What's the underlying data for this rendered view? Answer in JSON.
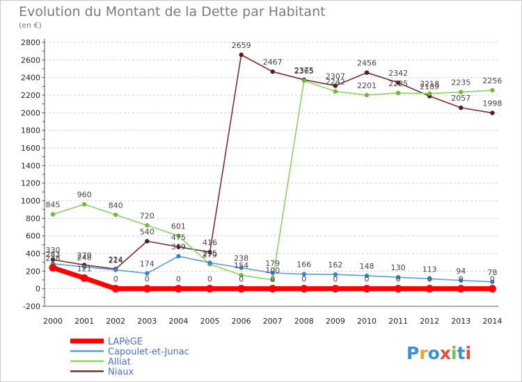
{
  "chart_data": {
    "type": "line",
    "title": "Evolution du Montant de la Dette par Habitant",
    "subtitle": "(en €)",
    "xlabel": "",
    "ylabel": "",
    "x": [
      "2000",
      "2001",
      "2002",
      "2003",
      "2004",
      "2005",
      "2006",
      "2007",
      "2008",
      "2009",
      "2010",
      "2011",
      "2012",
      "2013",
      "2014"
    ],
    "ylim": [
      -200,
      2800
    ],
    "yticks": [
      -200,
      0,
      200,
      400,
      600,
      800,
      1000,
      1200,
      1400,
      1600,
      1800,
      2000,
      2200,
      2400,
      2600,
      2800
    ],
    "grid": "horizontal-dashed",
    "legend_position": "bottom-left",
    "series": [
      {
        "name": "LAPèGE",
        "color": "#ff0000",
        "values": [
          238,
          121,
          0,
          0,
          0,
          0,
          0,
          0,
          0,
          0,
          0,
          0,
          0,
          0,
          0
        ],
        "labels": [
          "238",
          "121",
          "0",
          "0",
          "0",
          "0",
          "0",
          "0",
          "0",
          "0",
          "0",
          "0",
          "0",
          "0",
          "0"
        ],
        "marker": "dot"
      },
      {
        "name": "Capoulet-et-Junac",
        "color": "#5b9bd5",
        "values": [
          283,
          248,
          214,
          174,
          369,
          295,
          238,
          179,
          166,
          162,
          148,
          130,
          113,
          94,
          78
        ],
        "labels": [
          "283",
          "248",
          "214",
          "174",
          "369",
          "295",
          "238",
          "179",
          "166",
          "162",
          "148",
          "130",
          "113",
          "94",
          "78"
        ],
        "marker": "dot"
      },
      {
        "name": "Alliat",
        "color": "#8bd35d",
        "values": [
          845,
          960,
          840,
          720,
          601,
          279,
          154,
          100,
          2365,
          2242,
          2201,
          2225,
          2218,
          2235,
          2256
        ],
        "labels": [
          "845",
          "960",
          "840",
          "720",
          "601",
          "279",
          "154",
          "100",
          "2365",
          "2242",
          "2201",
          "2225",
          "2218",
          "2235",
          "2256"
        ],
        "marker": "dot"
      },
      {
        "name": "Niaux",
        "color": "#7a2e2e",
        "values": [
          330,
          270,
          224,
          540,
          475,
          416,
          2659,
          2467,
          2375,
          2307,
          2456,
          2342,
          2189,
          2057,
          1998
        ],
        "labels": [
          "330",
          "270",
          "224",
          "540",
          "475",
          "416",
          "2659",
          "2467",
          "2375",
          "2307",
          "2456",
          "2342",
          "2189",
          "2057",
          "1998"
        ],
        "marker": "dot"
      }
    ]
  },
  "brand": {
    "logo_text": "Proxiti"
  }
}
